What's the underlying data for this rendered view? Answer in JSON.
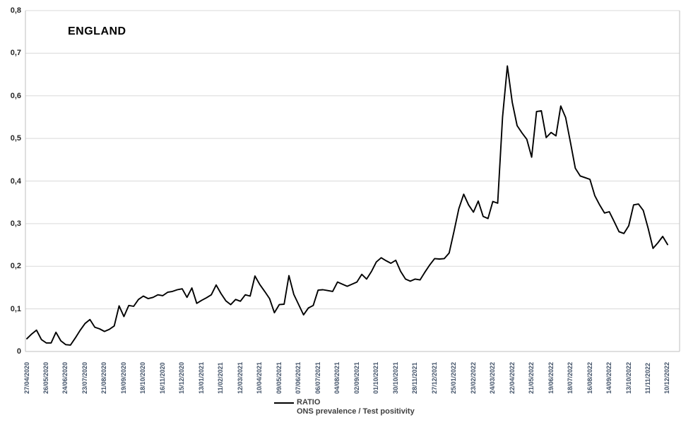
{
  "title": "ENGLAND",
  "legend": {
    "series_label": "RATIO",
    "series_description": "ONS prevalence / Test positivity"
  },
  "colors": {
    "background": "#ffffff",
    "gridline": "#d9d9d9",
    "axis_line": "#bfbfbf",
    "series_line": "#000000",
    "x_tick_text": "#44546a",
    "y_tick_text": "#262626",
    "legend_text": "#3f3f3f",
    "title_text": "#000000"
  },
  "chart_data": {
    "type": "line",
    "title": "ENGLAND",
    "grid": true,
    "legend_position": "bottom-center",
    "ylim": [
      0,
      0.8
    ],
    "y_tick_step": 0.1,
    "y_tick_labels": [
      "0",
      "0,1",
      "0,2",
      "0,3",
      "0,4",
      "0,5",
      "0,6",
      "0,7",
      "0,8"
    ],
    "decimal_separator": ",",
    "x_tick_labels": [
      "27/04/2020",
      "26/05/2020",
      "24/06/2020",
      "23/07/2020",
      "21/08/2020",
      "19/09/2020",
      "18/10/2020",
      "16/11/2020",
      "15/12/2020",
      "13/01/2021",
      "11/02/2021",
      "12/03/2021",
      "10/04/2021",
      "09/05/2021",
      "07/06/2021",
      "06/07/2021",
      "04/08/2021",
      "02/09/2021",
      "01/10/2021",
      "30/10/2021",
      "28/11/2021",
      "27/12/2021",
      "25/01/2022",
      "23/02/2022",
      "24/03/2022",
      "22/04/2022",
      "21/05/2022",
      "19/06/2022",
      "18/07/2022",
      "16/08/2022",
      "14/09/2022",
      "13/10/2022",
      "11/11/2022",
      "10/12/2022"
    ],
    "points_per_x_tick": 4,
    "series": [
      {
        "name": "RATIO",
        "description": "ONS prevalence / Test positivity",
        "color": "#000000",
        "values": [
          0.03,
          0.041,
          0.05,
          0.028,
          0.02,
          0.02,
          0.045,
          0.025,
          0.016,
          0.015,
          0.032,
          0.05,
          0.066,
          0.075,
          0.057,
          0.053,
          0.047,
          0.052,
          0.06,
          0.107,
          0.082,
          0.108,
          0.106,
          0.122,
          0.13,
          0.124,
          0.127,
          0.133,
          0.131,
          0.139,
          0.141,
          0.145,
          0.147,
          0.127,
          0.149,
          0.113,
          0.12,
          0.126,
          0.133,
          0.156,
          0.136,
          0.119,
          0.11,
          0.122,
          0.118,
          0.133,
          0.13,
          0.177,
          0.157,
          0.141,
          0.124,
          0.091,
          0.11,
          0.111,
          0.178,
          0.134,
          0.11,
          0.086,
          0.102,
          0.108,
          0.144,
          0.145,
          0.143,
          0.141,
          0.163,
          0.158,
          0.153,
          0.158,
          0.163,
          0.181,
          0.17,
          0.188,
          0.21,
          0.22,
          0.213,
          0.207,
          0.214,
          0.188,
          0.17,
          0.165,
          0.17,
          0.168,
          0.186,
          0.203,
          0.218,
          0.217,
          0.218,
          0.231,
          0.282,
          0.335,
          0.369,
          0.344,
          0.327,
          0.353,
          0.317,
          0.312,
          0.352,
          0.348,
          0.55,
          0.67,
          0.585,
          0.53,
          0.513,
          0.498,
          0.456,
          0.563,
          0.565,
          0.502,
          0.514,
          0.506,
          0.576,
          0.549,
          0.49,
          0.43,
          0.412,
          0.408,
          0.404,
          0.366,
          0.344,
          0.325,
          0.328,
          0.305,
          0.281,
          0.277,
          0.295,
          0.344,
          0.346,
          0.331,
          0.289,
          0.242,
          0.255,
          0.27,
          0.251
        ]
      }
    ]
  }
}
